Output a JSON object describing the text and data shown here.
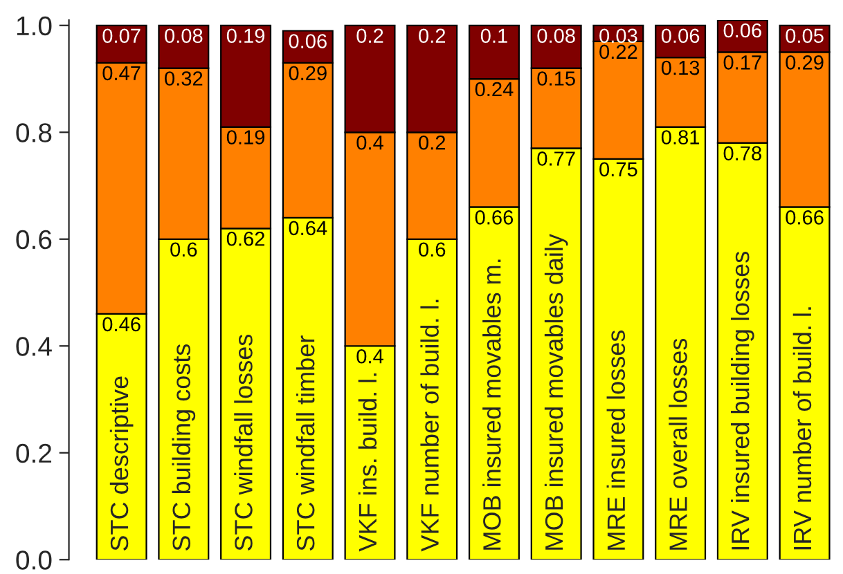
{
  "chart_data": {
    "type": "bar",
    "stacked": true,
    "data_labels": true,
    "ylim": [
      0,
      1.01
    ],
    "yticks": [
      {
        "value": 0,
        "label": "0.0"
      },
      0.2,
      0.4,
      0.6,
      0.8,
      {
        "value": 1,
        "label": "1.0"
      }
    ],
    "grid": false,
    "legend": false,
    "categories": [
      "STC descriptive",
      "STC building costs",
      "STC windfall losses",
      "STC windfall timber",
      "VKF ins. build. l.",
      "VKF number of build. l.",
      "MOB insured movables m.",
      "MOB insured movables daily",
      "MRE insured losses",
      "MRE overall losses",
      "IRV insured building losses",
      "IRV number of build. l."
    ],
    "series": [
      {
        "color": "#ffff00",
        "values": [
          0.46,
          0.6,
          0.62,
          0.64,
          0.4,
          0.6,
          0.66,
          0.77,
          0.75,
          0.81,
          0.78,
          0.66
        ]
      },
      {
        "color": "#ff8000",
        "values": [
          0.47,
          0.32,
          0.19,
          0.29,
          0.4,
          0.2,
          0.24,
          0.15,
          0.22,
          0.13,
          0.17,
          0.29
        ]
      },
      {
        "color": "#800000",
        "values": [
          0.07,
          0.08,
          0.19,
          0.06,
          0.2,
          0.2,
          0.1,
          0.08,
          0.03,
          0.06,
          0.06,
          0.05
        ]
      }
    ]
  }
}
